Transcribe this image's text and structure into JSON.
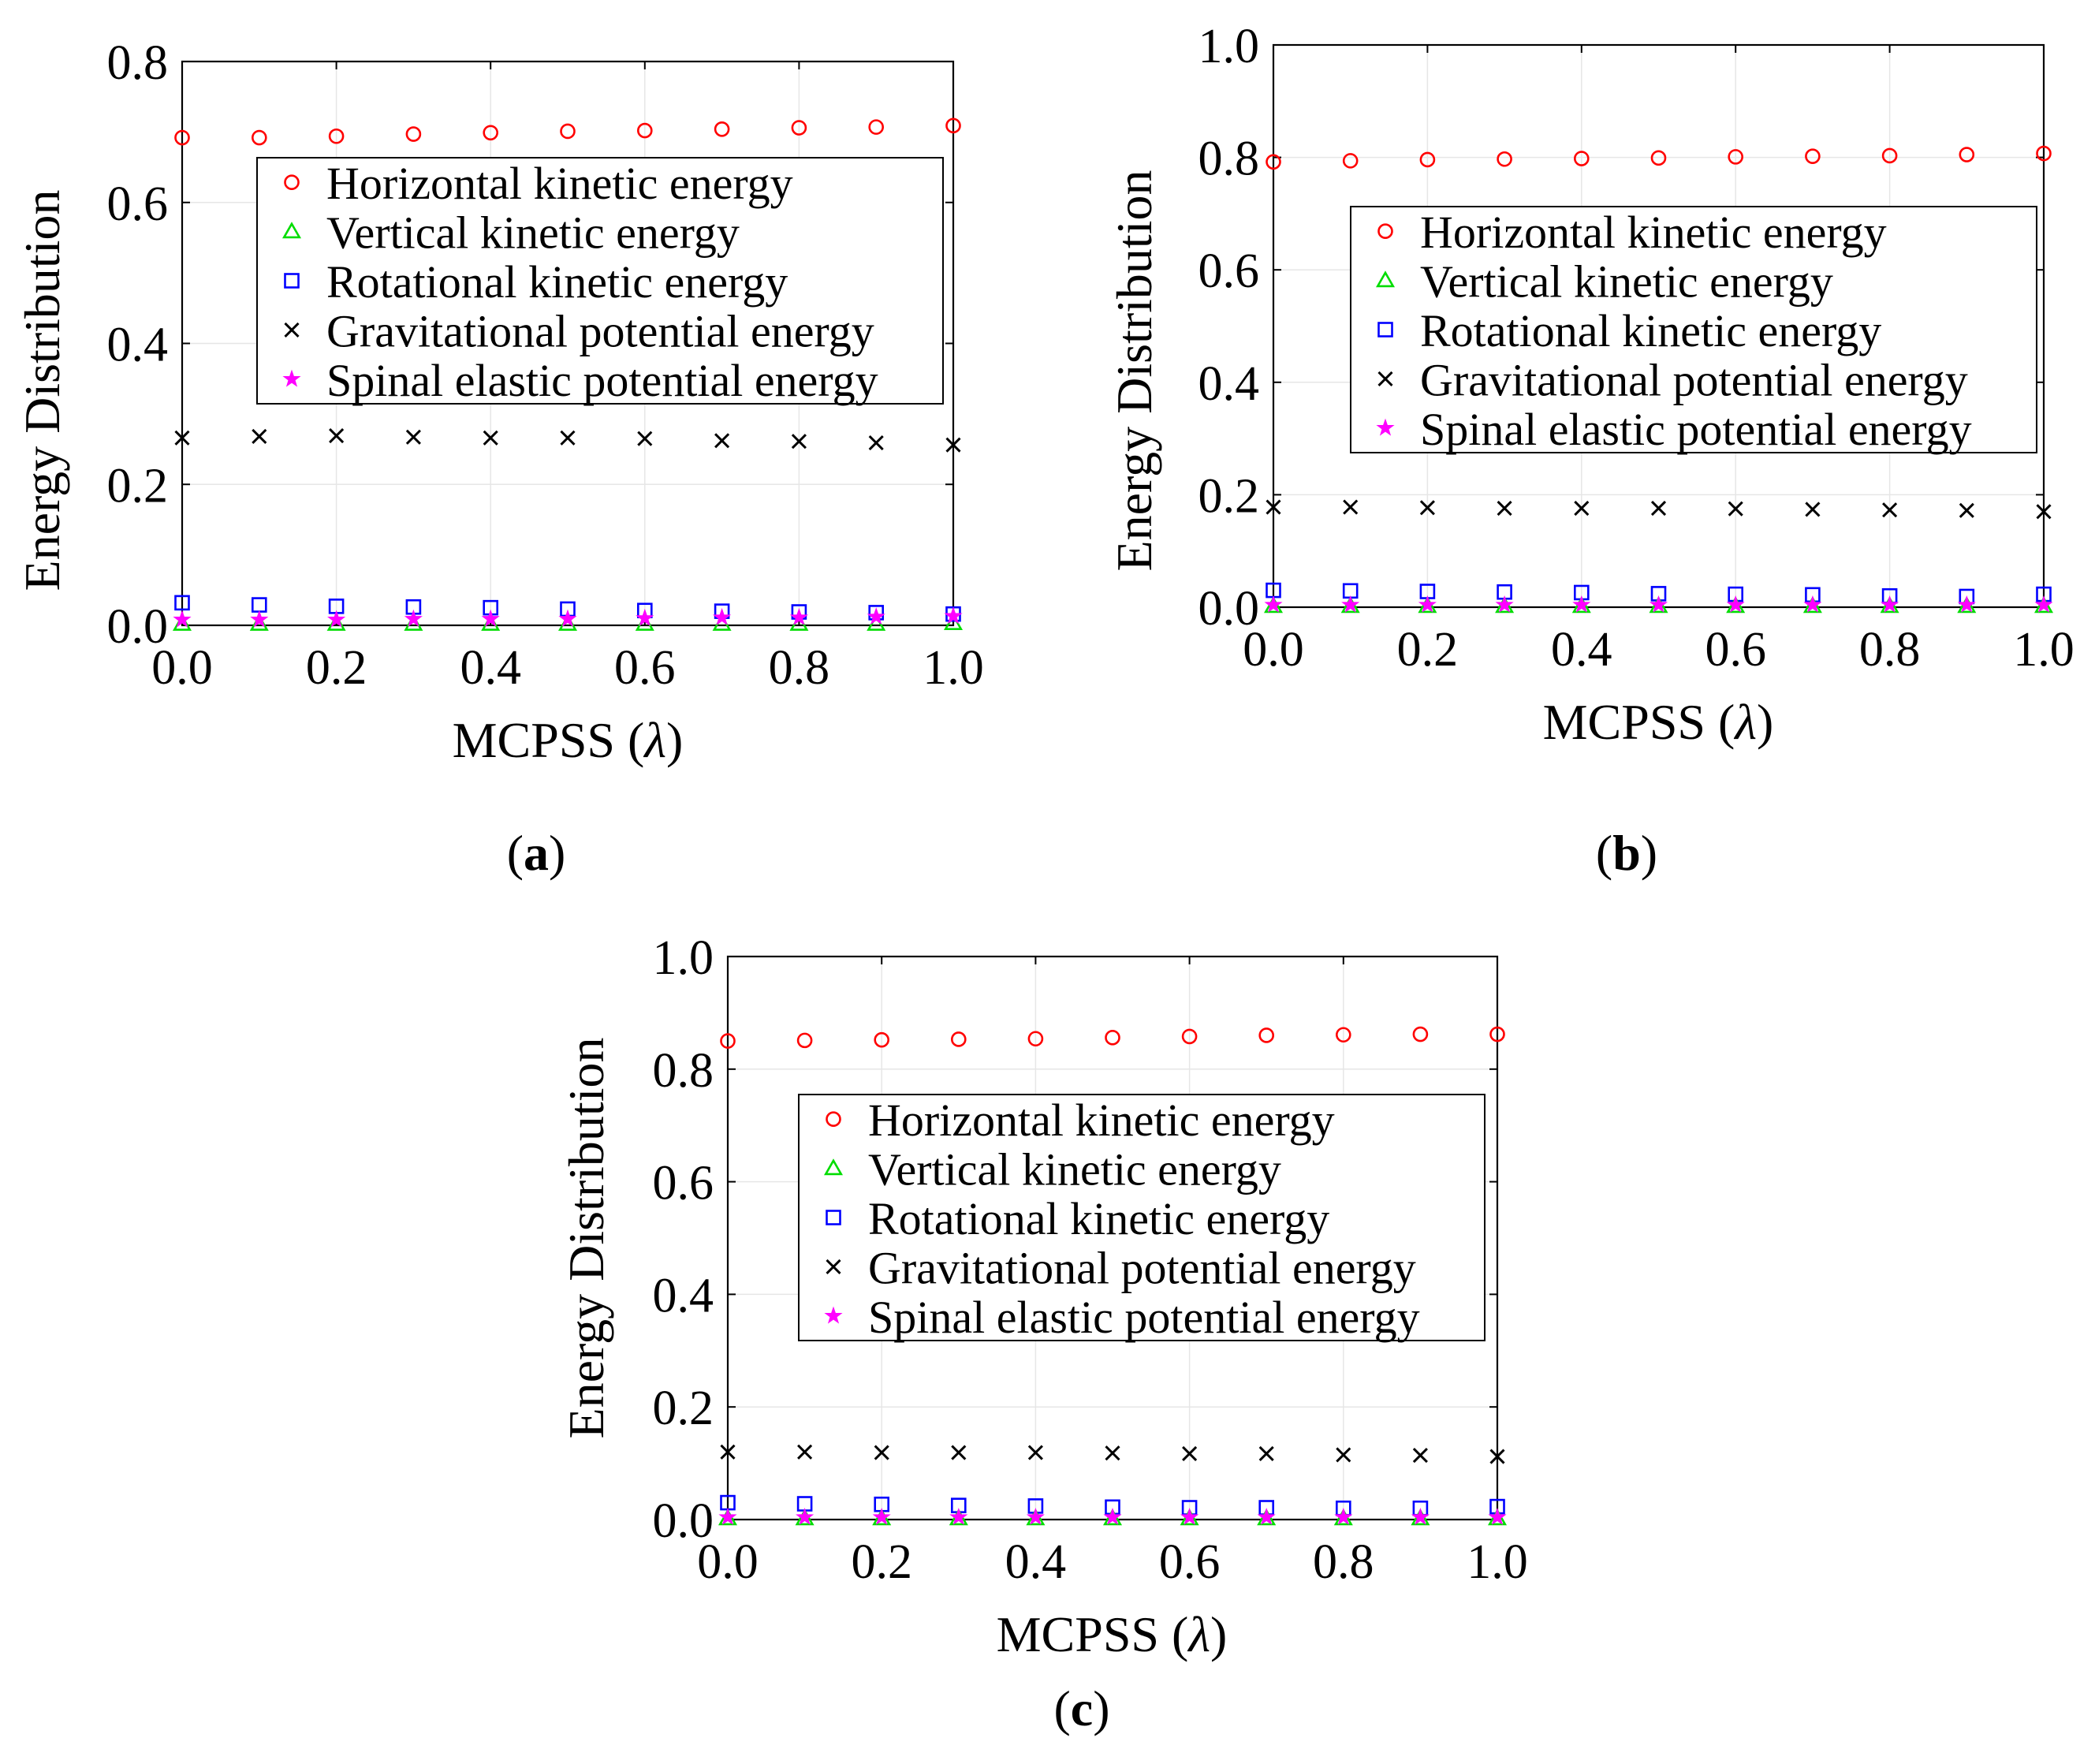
{
  "xlabel_prefix": "MCPSS",
  "xlabel_symbol": "λ",
  "ylabel_word1": "Energy",
  "ylabel_word2": "Distribution",
  "captions": [
    "a",
    "b",
    "c"
  ],
  "colors": {
    "horizontal": "#ff0000",
    "vertical": "#00dd00",
    "rotational": "#0000ff",
    "gravitational": "#000000",
    "spinal": "#ff00ff",
    "grid": "#e6e6e6"
  },
  "chart_data": [
    {
      "type": "scatter",
      "panel": "a",
      "title": "",
      "xlabel": "MCPSS (λ)",
      "ylabel": "Energy Distribution",
      "xlim": [
        0.0,
        1.0
      ],
      "ylim": [
        0.0,
        0.8
      ],
      "xticks": [
        "0.0",
        "0.2",
        "0.4",
        "0.6",
        "0.8",
        "1.0"
      ],
      "yticks": [
        "0.0",
        "0.2",
        "0.4",
        "0.6",
        "0.8"
      ],
      "x": [
        0.0,
        0.1,
        0.2,
        0.3,
        0.4,
        0.5,
        0.6,
        0.7,
        0.8,
        0.9,
        1.0
      ],
      "legend_position": "upper-middle",
      "series": [
        {
          "name": "Horizontal kinetic energy",
          "marker": "circle",
          "color_key": "horizontal",
          "values": [
            0.692,
            0.692,
            0.694,
            0.697,
            0.699,
            0.701,
            0.702,
            0.704,
            0.706,
            0.707,
            0.709
          ]
        },
        {
          "name": "Vertical kinetic energy",
          "marker": "triangle",
          "color_key": "vertical",
          "values": [
            0.002,
            0.002,
            0.002,
            0.002,
            0.002,
            0.002,
            0.002,
            0.002,
            0.002,
            0.002,
            0.003
          ]
        },
        {
          "name": "Rotational kinetic energy",
          "marker": "square",
          "color_key": "rotational",
          "values": [
            0.032,
            0.029,
            0.027,
            0.026,
            0.025,
            0.023,
            0.021,
            0.02,
            0.019,
            0.018,
            0.016
          ]
        },
        {
          "name": "Gravitational potential energy",
          "marker": "x",
          "color_key": "gravitational",
          "values": [
            0.266,
            0.268,
            0.269,
            0.267,
            0.266,
            0.266,
            0.265,
            0.262,
            0.261,
            0.259,
            0.256
          ]
        },
        {
          "name": "Spinal elastic potential energy",
          "marker": "star",
          "color_key": "spinal",
          "values": [
            0.008,
            0.008,
            0.008,
            0.009,
            0.009,
            0.009,
            0.01,
            0.011,
            0.011,
            0.012,
            0.013
          ]
        }
      ]
    },
    {
      "type": "scatter",
      "panel": "b",
      "title": "",
      "xlabel": "MCPSS (λ)",
      "ylabel": "Energy Distribution",
      "xlim": [
        0.0,
        1.0
      ],
      "ylim": [
        0.0,
        1.0
      ],
      "xticks": [
        "0.0",
        "0.2",
        "0.4",
        "0.6",
        "0.8",
        "1.0"
      ],
      "yticks": [
        "0.0",
        "0.2",
        "0.4",
        "0.6",
        "0.8",
        "1.0"
      ],
      "x": [
        0.0,
        0.1,
        0.2,
        0.3,
        0.4,
        0.5,
        0.6,
        0.7,
        0.8,
        0.9,
        1.0
      ],
      "legend_position": "upper-right",
      "series": [
        {
          "name": "Horizontal kinetic energy",
          "marker": "circle",
          "color_key": "horizontal",
          "values": [
            0.792,
            0.794,
            0.796,
            0.797,
            0.798,
            0.799,
            0.801,
            0.802,
            0.803,
            0.805,
            0.807
          ]
        },
        {
          "name": "Vertical kinetic energy",
          "marker": "triangle",
          "color_key": "vertical",
          "values": [
            0.002,
            0.002,
            0.002,
            0.002,
            0.002,
            0.002,
            0.002,
            0.002,
            0.002,
            0.002,
            0.002
          ]
        },
        {
          "name": "Rotational kinetic energy",
          "marker": "square",
          "color_key": "rotational",
          "values": [
            0.03,
            0.029,
            0.028,
            0.027,
            0.026,
            0.024,
            0.023,
            0.022,
            0.02,
            0.019,
            0.023
          ]
        },
        {
          "name": "Gravitational potential energy",
          "marker": "x",
          "color_key": "gravitational",
          "values": [
            0.178,
            0.178,
            0.177,
            0.176,
            0.176,
            0.176,
            0.175,
            0.174,
            0.173,
            0.172,
            0.17
          ]
        },
        {
          "name": "Spinal elastic potential energy",
          "marker": "star",
          "color_key": "spinal",
          "values": [
            0.004,
            0.004,
            0.004,
            0.004,
            0.004,
            0.004,
            0.004,
            0.004,
            0.004,
            0.004,
            0.004
          ]
        }
      ]
    },
    {
      "type": "scatter",
      "panel": "c",
      "title": "",
      "xlabel": "MCPSS (λ)",
      "ylabel": "Energy Distribution",
      "xlim": [
        0.0,
        1.0
      ],
      "ylim": [
        0.0,
        1.0
      ],
      "xticks": [
        "0.0",
        "0.2",
        "0.4",
        "0.6",
        "0.8",
        "1.0"
      ],
      "yticks": [
        "0.0",
        "0.2",
        "0.4",
        "0.6",
        "0.8",
        "1.0"
      ],
      "x": [
        0.0,
        0.1,
        0.2,
        0.3,
        0.4,
        0.5,
        0.6,
        0.7,
        0.8,
        0.9,
        1.0
      ],
      "legend_position": "center-right",
      "series": [
        {
          "name": "Horizontal kinetic energy",
          "marker": "circle",
          "color_key": "horizontal",
          "values": [
            0.85,
            0.851,
            0.852,
            0.853,
            0.854,
            0.856,
            0.858,
            0.86,
            0.861,
            0.862,
            0.862
          ]
        },
        {
          "name": "Vertical kinetic energy",
          "marker": "triangle",
          "color_key": "vertical",
          "values": [
            0.002,
            0.002,
            0.002,
            0.002,
            0.002,
            0.002,
            0.002,
            0.002,
            0.002,
            0.002,
            0.002
          ]
        },
        {
          "name": "Rotational kinetic energy",
          "marker": "square",
          "color_key": "rotational",
          "values": [
            0.03,
            0.028,
            0.027,
            0.025,
            0.024,
            0.022,
            0.021,
            0.021,
            0.02,
            0.02,
            0.023
          ]
        },
        {
          "name": "Gravitational potential energy",
          "marker": "x",
          "color_key": "gravitational",
          "values": [
            0.12,
            0.12,
            0.119,
            0.119,
            0.119,
            0.118,
            0.117,
            0.117,
            0.115,
            0.114,
            0.112
          ]
        },
        {
          "name": "Spinal elastic potential energy",
          "marker": "star",
          "color_key": "spinal",
          "values": [
            0.004,
            0.004,
            0.004,
            0.004,
            0.004,
            0.004,
            0.004,
            0.004,
            0.004,
            0.004,
            0.004
          ]
        }
      ]
    }
  ]
}
